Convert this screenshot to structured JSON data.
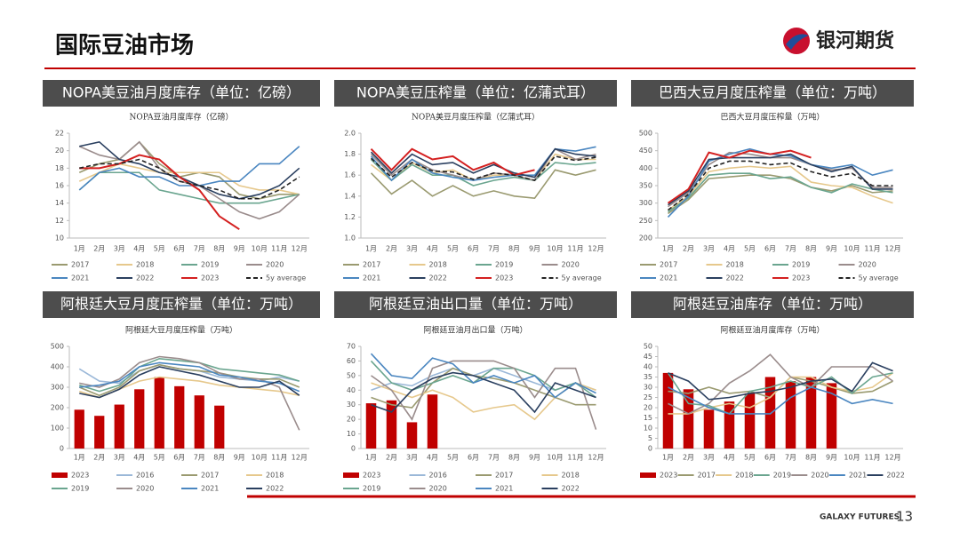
{
  "header": {
    "title": "国际豆油市场",
    "logo": "银河期货"
  },
  "footer": {
    "brand": "GALAXY FUTURES",
    "page": "13"
  },
  "chart_data": [
    {
      "type": "line",
      "panel_title": "NOPA美豆油月度库存（单位：亿磅）",
      "title": "NOPA豆油月度库存（亿磅）",
      "categories": [
        "1月",
        "2月",
        "3月",
        "4月",
        "5月",
        "6月",
        "7月",
        "8月",
        "9月",
        "10月",
        "11月",
        "12月"
      ],
      "ylim": [
        10,
        22
      ],
      "yticks": [
        10,
        12,
        14,
        16,
        18,
        20,
        22
      ],
      "series": [
        {
          "name": "2017",
          "color": "#9a9a70",
          "values": [
            17.5,
            18.5,
            19,
            21,
            18.5,
            17,
            17.5,
            17,
            15,
            14.5,
            15,
            15
          ]
        },
        {
          "name": "2018",
          "color": "#e6c88c",
          "values": [
            16.5,
            17.5,
            18.5,
            18,
            17.5,
            17.5,
            17.5,
            17.5,
            16,
            15.5,
            15.5,
            15
          ]
        },
        {
          "name": "2019",
          "color": "#6aa58f",
          "values": [
            15.5,
            17.5,
            17.5,
            17.5,
            15.5,
            15,
            14.5,
            14,
            14,
            14,
            14.5,
            15
          ]
        },
        {
          "name": "2020",
          "color": "#9a8c8c",
          "values": [
            20.5,
            19.5,
            19,
            21,
            18,
            16.5,
            16,
            14.5,
            13,
            12.2,
            13,
            15
          ]
        },
        {
          "name": "2021",
          "color": "#4a86c0",
          "values": [
            15.5,
            17.5,
            18,
            17,
            17,
            16,
            16,
            16.5,
            16.5,
            18.5,
            18.5,
            20.5
          ]
        },
        {
          "name": "2022",
          "color": "#2a3f5f",
          "values": [
            20.5,
            21,
            19,
            18.5,
            17.5,
            17,
            16,
            15,
            14.5,
            15,
            16,
            18
          ]
        },
        {
          "name": "2023",
          "color": "#d42020",
          "values": [
            18,
            18,
            18.5,
            19.5,
            19,
            17,
            15.5,
            12.5,
            11,
            null,
            null,
            null
          ]
        },
        {
          "name": "5y average",
          "color": "#222222",
          "style": "dashed",
          "values": [
            18,
            18.5,
            18.5,
            19,
            18,
            16.5,
            16,
            15.5,
            14.5,
            14.5,
            15.5,
            17
          ]
        }
      ]
    },
    {
      "type": "line",
      "panel_title": "NOPA美豆压榨量（单位：亿蒲式耳）",
      "title": "NOPA美豆月度压榨量（亿蒲式耳）",
      "categories": [
        "1月",
        "2月",
        "3月",
        "4月",
        "5月",
        "6月",
        "7月",
        "8月",
        "9月",
        "10月",
        "11月",
        "12月"
      ],
      "ylim": [
        1,
        2
      ],
      "yticks": [
        {
          "value": 1,
          "label": "1.0"
        },
        1.2,
        1.4,
        1.6,
        1.8,
        {
          "value": 2,
          "label": "2.0"
        }
      ],
      "series": [
        {
          "name": "2017",
          "color": "#9a9a70",
          "values": [
            1.62,
            1.42,
            1.55,
            1.4,
            1.5,
            1.4,
            1.45,
            1.4,
            1.38,
            1.65,
            1.6,
            1.65
          ]
        },
        {
          "name": "2018",
          "color": "#e6c88c",
          "values": [
            1.7,
            1.55,
            1.72,
            1.62,
            1.65,
            1.55,
            1.6,
            1.6,
            1.55,
            1.8,
            1.75,
            1.75
          ]
        },
        {
          "name": "2019",
          "color": "#6aa58f",
          "values": [
            1.75,
            1.55,
            1.7,
            1.6,
            1.6,
            1.5,
            1.55,
            1.58,
            1.55,
            1.72,
            1.7,
            1.72
          ]
        },
        {
          "name": "2020",
          "color": "#9a8c8c",
          "values": [
            1.8,
            1.6,
            1.75,
            1.65,
            1.6,
            1.55,
            1.62,
            1.6,
            1.55,
            1.85,
            1.75,
            1.8
          ]
        },
        {
          "name": "2021",
          "color": "#4a86c0",
          "values": [
            1.78,
            1.55,
            1.75,
            1.62,
            1.58,
            1.55,
            1.58,
            1.6,
            1.6,
            1.85,
            1.83,
            1.87
          ]
        },
        {
          "name": "2022",
          "color": "#2a3f5f",
          "values": [
            1.82,
            1.62,
            1.8,
            1.7,
            1.72,
            1.62,
            1.7,
            1.62,
            1.58,
            1.85,
            1.8,
            1.78
          ]
        },
        {
          "name": "2023",
          "color": "#d42020",
          "values": [
            1.85,
            1.65,
            1.85,
            1.75,
            1.78,
            1.65,
            1.72,
            1.6,
            1.65,
            null,
            null,
            null
          ]
        },
        {
          "name": "5y average",
          "color": "#222222",
          "style": "dashed",
          "values": [
            1.76,
            1.58,
            1.72,
            1.64,
            1.63,
            1.56,
            1.62,
            1.6,
            1.55,
            1.78,
            1.74,
            1.77
          ]
        }
      ]
    },
    {
      "type": "line",
      "panel_title": "巴西大豆月度压榨量（单位：万吨）",
      "title": "巴西大豆月度压榨量（万吨）",
      "categories": [
        "1月",
        "2月",
        "3月",
        "4月",
        "5月",
        "6月",
        "7月",
        "8月",
        "9月",
        "10月",
        "11月",
        "12月"
      ],
      "ylim": [
        200,
        500
      ],
      "yticks": [
        200,
        250,
        300,
        350,
        400,
        450,
        500
      ],
      "series": [
        {
          "name": "2017",
          "color": "#9a9a70",
          "values": [
            270,
            310,
            370,
            375,
            380,
            380,
            370,
            345,
            335,
            350,
            330,
            335
          ]
        },
        {
          "name": "2018",
          "color": "#e6c88c",
          "values": [
            280,
            320,
            390,
            400,
            405,
            400,
            405,
            360,
            350,
            345,
            320,
            300
          ]
        },
        {
          "name": "2019",
          "color": "#6aa58f",
          "values": [
            275,
            315,
            380,
            385,
            385,
            370,
            375,
            345,
            330,
            355,
            340,
            330
          ]
        },
        {
          "name": "2020",
          "color": "#9a8c8c",
          "values": [
            290,
            330,
            410,
            445,
            440,
            430,
            430,
            410,
            395,
            400,
            345,
            345
          ]
        },
        {
          "name": "2021",
          "color": "#4a86c0",
          "values": [
            260,
            320,
            420,
            440,
            455,
            440,
            435,
            410,
            400,
            410,
            380,
            395
          ]
        },
        {
          "name": "2022",
          "color": "#2a3f5f",
          "values": [
            295,
            335,
            425,
            430,
            430,
            430,
            440,
            410,
            390,
            405,
            340,
            340
          ]
        },
        {
          "name": "2023",
          "color": "#d42020",
          "values": [
            300,
            340,
            445,
            430,
            450,
            440,
            450,
            430,
            null,
            null,
            null,
            null
          ]
        },
        {
          "name": "5y average",
          "color": "#222222",
          "style": "dashed",
          "values": [
            280,
            325,
            400,
            420,
            420,
            410,
            415,
            390,
            375,
            385,
            350,
            350
          ]
        }
      ]
    },
    {
      "type": "combo",
      "panel_title": "阿根廷大豆月度压榨量（单位：万吨）",
      "title": "阿根廷大豆月度压榨量（万吨）",
      "categories": [
        "1月",
        "2月",
        "3月",
        "4月",
        "5月",
        "6月",
        "7月",
        "8月",
        "9月",
        "10月",
        "11月",
        "12月"
      ],
      "ylim": [
        0,
        500
      ],
      "yticks": [
        0,
        100,
        200,
        300,
        400,
        500
      ],
      "series": [
        {
          "name": "2023",
          "color": "#c00000",
          "type": "bar",
          "values": [
            190,
            160,
            215,
            290,
            350,
            305,
            260,
            210,
            null,
            null,
            null,
            null
          ]
        },
        {
          "name": "2016",
          "color": "#9bb8d8",
          "values": [
            390,
            330,
            320,
            380,
            410,
            390,
            380,
            350,
            340,
            330,
            350,
            330
          ]
        },
        {
          "name": "2017",
          "color": "#9a9a70",
          "values": [
            300,
            260,
            300,
            380,
            410,
            390,
            380,
            370,
            350,
            340,
            340,
            300
          ]
        },
        {
          "name": "2018",
          "color": "#e6c88c",
          "values": [
            280,
            250,
            290,
            330,
            350,
            340,
            330,
            310,
            300,
            290,
            280,
            260
          ]
        },
        {
          "name": "2019",
          "color": "#6aa58f",
          "values": [
            310,
            280,
            310,
            400,
            440,
            430,
            420,
            390,
            380,
            370,
            360,
            330
          ]
        },
        {
          "name": "2020",
          "color": "#9a8c8c",
          "values": [
            320,
            300,
            340,
            420,
            450,
            440,
            420,
            370,
            340,
            340,
            300,
            90
          ]
        },
        {
          "name": "2021",
          "color": "#4a86c0",
          "values": [
            300,
            310,
            330,
            400,
            420,
            410,
            400,
            360,
            350,
            330,
            320,
            280
          ]
        },
        {
          "name": "2022",
          "color": "#2a3f5f",
          "values": [
            270,
            250,
            290,
            360,
            400,
            380,
            360,
            330,
            300,
            300,
            330,
            260
          ]
        }
      ]
    },
    {
      "type": "combo",
      "panel_title": "阿根廷豆油出口量（单位：万吨）",
      "title": "阿根廷豆油月出口量（万吨）",
      "categories": [
        "1月",
        "2月",
        "3月",
        "4月",
        "5月",
        "6月",
        "7月",
        "8月",
        "9月",
        "10月",
        "11月",
        "12月"
      ],
      "ylim": [
        0,
        70
      ],
      "yticks": [
        0,
        10,
        20,
        30,
        40,
        50,
        60,
        70
      ],
      "series": [
        {
          "name": "2023",
          "color": "#c00000",
          "type": "bar",
          "values": [
            31,
            33,
            18,
            37,
            null,
            null,
            null,
            null,
            null,
            null,
            null,
            null
          ]
        },
        {
          "name": "2016",
          "color": "#9bb8d8",
          "values": [
            40,
            45,
            43,
            50,
            55,
            50,
            55,
            50,
            45,
            40,
            45,
            40
          ]
        },
        {
          "name": "2017",
          "color": "#9a9a70",
          "values": [
            35,
            30,
            28,
            45,
            55,
            50,
            48,
            45,
            40,
            35,
            30,
            30
          ]
        },
        {
          "name": "2018",
          "color": "#e6c88c",
          "values": [
            45,
            40,
            35,
            40,
            35,
            25,
            28,
            30,
            20,
            35,
            45,
            40
          ]
        },
        {
          "name": "2019",
          "color": "#6aa58f",
          "values": [
            60,
            45,
            40,
            45,
            50,
            45,
            55,
            55,
            50,
            40,
            45,
            35
          ]
        },
        {
          "name": "2020",
          "color": "#9a8c8c",
          "values": [
            50,
            40,
            20,
            55,
            60,
            60,
            60,
            55,
            35,
            55,
            55,
            13
          ]
        },
        {
          "name": "2021",
          "color": "#4a86c0",
          "values": [
            65,
            50,
            48,
            62,
            58,
            45,
            50,
            45,
            50,
            35,
            45,
            38
          ]
        },
        {
          "name": "2022",
          "color": "#2a3f5f",
          "values": [
            30,
            25,
            40,
            48,
            52,
            50,
            45,
            40,
            25,
            45,
            40,
            35
          ]
        }
      ]
    },
    {
      "type": "combo",
      "panel_title": "阿根廷豆油库存（单位：万吨）",
      "title": "阿根廷豆油月度库存（万吨）",
      "categories": [
        "1月",
        "2月",
        "3月",
        "4月",
        "5月",
        "6月",
        "7月",
        "8月",
        "9月",
        "10月",
        "11月",
        "12月"
      ],
      "ylim": [
        0,
        50
      ],
      "yticks": [
        0,
        5,
        10,
        15,
        20,
        25,
        30,
        35,
        40,
        45,
        50
      ],
      "series": [
        {
          "name": "2023",
          "color": "#c00000",
          "type": "bar",
          "values": [
            37,
            29,
            19,
            23,
            27,
            35,
            33,
            35,
            32,
            null,
            null,
            null
          ]
        },
        {
          "name": "2017",
          "color": "#9a9a70",
          "values": [
            28,
            27,
            30,
            27,
            28,
            25,
            35,
            33,
            30,
            27,
            28,
            33
          ]
        },
        {
          "name": "2018",
          "color": "#e6c88c",
          "values": [
            17,
            17,
            20,
            22,
            20,
            25,
            35,
            35,
            30,
            28,
            30,
            37
          ]
        },
        {
          "name": "2019",
          "color": "#6aa58f",
          "values": [
            37,
            22,
            21,
            17,
            28,
            30,
            33,
            30,
            35,
            27,
            35,
            37
          ]
        },
        {
          "name": "2020",
          "color": "#9a8c8c",
          "values": [
            22,
            17,
            22,
            32,
            38,
            46,
            35,
            30,
            40,
            40,
            40,
            33
          ]
        },
        {
          "name": "2021",
          "color": "#4a86c0",
          "values": [
            30,
            25,
            20,
            17,
            17,
            17,
            25,
            30,
            27,
            22,
            24,
            22
          ]
        },
        {
          "name": "2022",
          "color": "#2a3f5f",
          "values": [
            37,
            33,
            24,
            25,
            27,
            28,
            30,
            33,
            34,
            28,
            42,
            38
          ]
        }
      ]
    }
  ]
}
